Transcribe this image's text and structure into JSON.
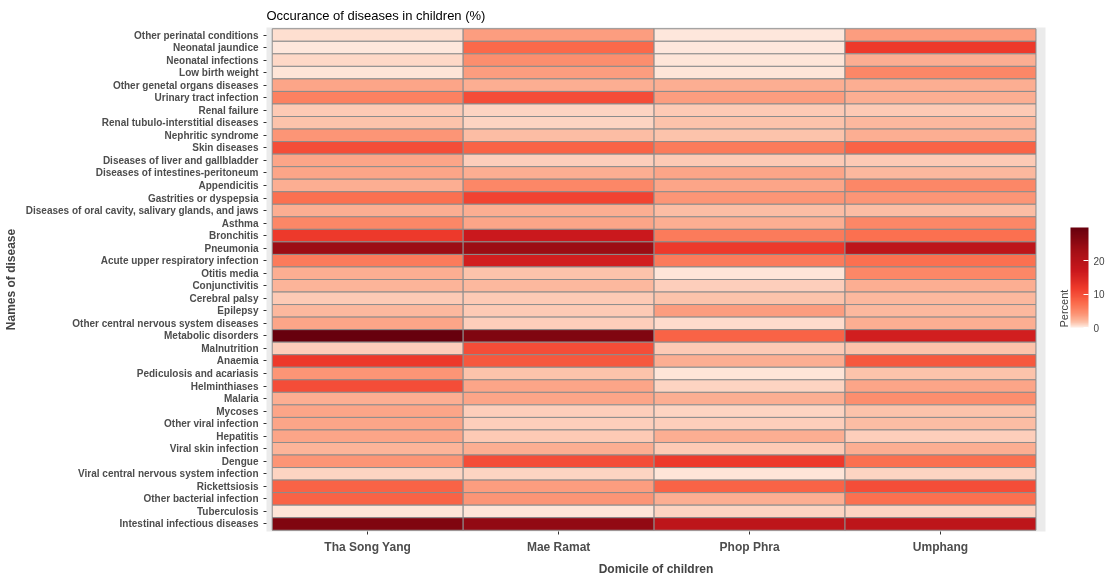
{
  "chart_data": {
    "type": "heatmap",
    "title": "Occurance of diseases in children (%)",
    "xlabel": "Domicile of children",
    "ylabel": "Names of disease",
    "clabel": "Percent",
    "categories": [
      "Tha Song Yang",
      "Mae Ramat",
      "Phop Phra",
      "Umphang"
    ],
    "y_categories": [
      "Other perinatal conditions",
      "Neonatal jaundice",
      "Neonatal infections",
      "Low birth weight",
      "Other genetal organs diseases",
      "Urinary tract infection",
      "Renal failure",
      "Renal tubulo-interstitial diseases",
      "Nephritic syndrome",
      "Skin diseases",
      "Diseases of liver and gallbladder",
      "Diseases of intestines-peritoneum",
      "Appendicitis",
      "Gastrities or dyspepsia",
      "Diseases of oral cavity, salivary glands, and jaws",
      "Asthma",
      "Bronchitis",
      "Pneumonia",
      "Acute upper respiratory infection",
      "Otitis media",
      "Conjunctivitis",
      "Cerebral palsy",
      "Epilepsy",
      "Other central nervous system diseases",
      "Metabolic disorders",
      "Malnutrition",
      "Anaemia",
      "Pediculosis and acariasis",
      "Helminthiases",
      "Malaria",
      "Mycoses",
      "Other viral infection",
      "Hepatitis",
      "Viral skin infection",
      "Dengue",
      "Viral central nervous system infection",
      "Rickettsiosis",
      "Other bacterial infection",
      "Tuberculosis",
      "Intestinal infectious diseases"
    ],
    "cells": [
      [
        0.5,
        3.5,
        0.2,
        3.5
      ],
      [
        0.2,
        7.5,
        0.2,
        12
      ],
      [
        0.7,
        4.5,
        0.3,
        2.5
      ],
      [
        0.3,
        3.5,
        0.3,
        5
      ],
      [
        3,
        2.5,
        2.5,
        2.5
      ],
      [
        5.5,
        10,
        3.5,
        2.5
      ],
      [
        1.2,
        0.8,
        1.2,
        1.2
      ],
      [
        1.5,
        0.8,
        1.5,
        2
      ],
      [
        4,
        1.8,
        1.5,
        2.5
      ],
      [
        10,
        8,
        6,
        8
      ],
      [
        3,
        1,
        1.2,
        1.2
      ],
      [
        3,
        2.5,
        3,
        2
      ],
      [
        2.5,
        5,
        3,
        5
      ],
      [
        7,
        11,
        4,
        4
      ],
      [
        2.5,
        2.5,
        1.8,
        1.8
      ],
      [
        5,
        3,
        2.5,
        5
      ],
      [
        12,
        17,
        6,
        7
      ],
      [
        24,
        24,
        12,
        19
      ],
      [
        6,
        16,
        6,
        7
      ],
      [
        2.5,
        1.5,
        0.3,
        5
      ],
      [
        2.2,
        2,
        1,
        2.5
      ],
      [
        1.2,
        1.2,
        1.5,
        2
      ],
      [
        2,
        1.2,
        3.5,
        2
      ],
      [
        3,
        1,
        0.6,
        2.5
      ],
      [
        30,
        27,
        8,
        16
      ],
      [
        1,
        10,
        1.2,
        1.5
      ],
      [
        12,
        9,
        2.5,
        9
      ],
      [
        4,
        1.5,
        0.3,
        1.5
      ],
      [
        10,
        3,
        0.8,
        3
      ],
      [
        2.5,
        3,
        2.5,
        4.5
      ],
      [
        3,
        1,
        0.8,
        1.5
      ],
      [
        3,
        1,
        1,
        1.8
      ],
      [
        3,
        1.2,
        2.5,
        1
      ],
      [
        2.2,
        2.5,
        1.2,
        2.5
      ],
      [
        4,
        10,
        12,
        7
      ],
      [
        0.8,
        0.8,
        0.3,
        0.8
      ],
      [
        8,
        3.5,
        8,
        10
      ],
      [
        8,
        4,
        2.5,
        7
      ],
      [
        0.3,
        0.3,
        0.8,
        0.8
      ],
      [
        27,
        25,
        19,
        19
      ]
    ],
    "clim": [
      0,
      30
    ],
    "cticks": [
      0,
      10,
      20
    ]
  }
}
